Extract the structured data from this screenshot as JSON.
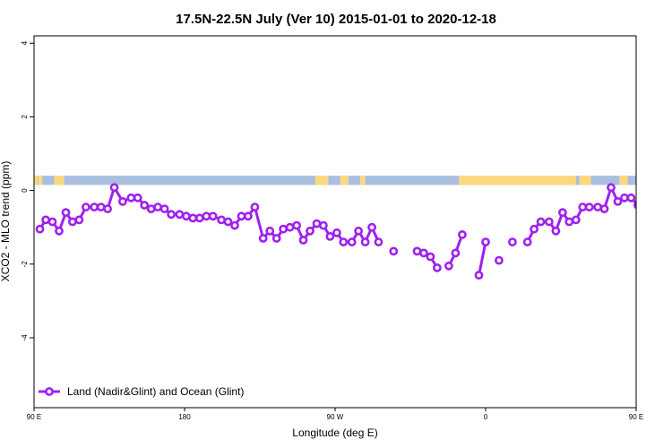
{
  "chart_data": {
    "type": "line",
    "title": "17.5N-22.5N July (Ver 10)   2015-01-01 to 2020-12-18",
    "xlabel": "Longitude (deg E)",
    "ylabel": "XCO2 - MLO trend (ppm)",
    "xlim": [
      90,
      450
    ],
    "ylim": [
      -5.9,
      4.2
    ],
    "x_ticks": [
      {
        "value": 90,
        "label": "90 E"
      },
      {
        "value": 180,
        "label": "180"
      },
      {
        "value": 270,
        "label": "90 W"
      },
      {
        "value": 360,
        "label": "0"
      },
      {
        "value": 450,
        "label": "90 E"
      },
      {
        "value": 540,
        "label": "180"
      }
    ],
    "y_ticks": [
      {
        "value": 4,
        "label": "4"
      },
      {
        "value": 2,
        "label": "2"
      },
      {
        "value": 0,
        "label": "0"
      },
      {
        "value": -2,
        "label": "-2"
      },
      {
        "value": -4,
        "label": "-4"
      }
    ],
    "land_mask_band": {
      "y_range": [
        0.15,
        0.4
      ],
      "ocean_color": "#a9bfdf",
      "land_color": "#fcd97e",
      "land_x_ranges": [
        [
          90,
          92
        ],
        [
          92.5,
          95
        ],
        [
          102,
          108
        ],
        [
          258,
          266
        ],
        [
          273,
          278
        ],
        [
          285,
          288
        ],
        [
          344,
          414
        ],
        [
          416,
          423
        ],
        [
          440,
          445
        ],
        [
          450,
          452
        ],
        [
          454,
          458
        ],
        [
          496,
          500
        ]
      ]
    },
    "series": [
      {
        "name": "Land (Nadir&Glint) and Ocean (Glint)",
        "color": "#a020f0",
        "segments": [
          [
            [
              93.5,
              -1.05
            ],
            [
              97,
              -0.8
            ],
            [
              101,
              -0.85
            ],
            [
              105,
              -1.1
            ],
            [
              109,
              -0.6
            ],
            [
              113,
              -0.85
            ],
            [
              117,
              -0.8
            ],
            [
              121,
              -0.45
            ],
            [
              126,
              -0.45
            ],
            [
              130,
              -0.45
            ],
            [
              134,
              -0.5
            ],
            [
              138,
              0.08
            ],
            [
              143,
              -0.3
            ],
            [
              148,
              -0.2
            ],
            [
              152,
              -0.2
            ],
            [
              156,
              -0.4
            ],
            [
              160,
              -0.5
            ],
            [
              164,
              -0.45
            ],
            [
              168,
              -0.5
            ],
            [
              172,
              -0.65
            ],
            [
              177,
              -0.65
            ],
            [
              181,
              -0.7
            ],
            [
              185,
              -0.75
            ],
            [
              189,
              -0.75
            ],
            [
              193,
              -0.7
            ],
            [
              197,
              -0.7
            ],
            [
              202,
              -0.8
            ],
            [
              206,
              -0.85
            ],
            [
              210,
              -0.95
            ],
            [
              214,
              -0.7
            ],
            [
              218,
              -0.7
            ],
            [
              222,
              -0.45
            ],
            [
              227,
              -1.3
            ],
            [
              231,
              -1.1
            ],
            [
              235,
              -1.3
            ],
            [
              239,
              -1.05
            ],
            [
              243,
              -1.0
            ],
            [
              247,
              -0.95
            ],
            [
              251,
              -1.35
            ],
            [
              255,
              -1.1
            ],
            [
              259,
              -0.9
            ],
            [
              263,
              -0.95
            ],
            [
              267,
              -1.25
            ],
            [
              271,
              -1.15
            ],
            [
              275,
              -1.4
            ],
            [
              280,
              -1.4
            ],
            [
              284,
              -1.1
            ],
            [
              288,
              -1.4
            ],
            [
              292,
              -1.0
            ],
            [
              296,
              -1.4
            ]
          ],
          [
            [
              305,
              -1.65
            ]
          ],
          [
            [
              319,
              -1.65
            ],
            [
              323,
              -1.7
            ],
            [
              327,
              -1.8
            ],
            [
              331,
              -2.1
            ]
          ],
          [
            [
              338,
              -2.05
            ],
            [
              342,
              -1.7
            ],
            [
              346,
              -1.2
            ]
          ],
          [
            [
              356,
              -2.3
            ],
            [
              360,
              -1.4
            ]
          ],
          [
            [
              368,
              -1.9
            ]
          ],
          [
            [
              376,
              -1.4
            ]
          ],
          [
            [
              385,
              -1.4
            ],
            [
              389,
              -1.05
            ],
            [
              393,
              -0.85
            ],
            [
              398,
              -0.85
            ],
            [
              402,
              -1.1
            ],
            [
              406,
              -0.6
            ],
            [
              410,
              -0.85
            ],
            [
              414,
              -0.8
            ],
            [
              418,
              -0.45
            ],
            [
              422,
              -0.45
            ],
            [
              427,
              -0.45
            ],
            [
              431,
              -0.5
            ],
            [
              435,
              0.08
            ],
            [
              439,
              -0.3
            ],
            [
              443,
              -0.2
            ],
            [
              447,
              -0.2
            ],
            [
              451,
              -0.4
            ],
            [
              455,
              -0.5
            ],
            [
              459,
              -0.5
            ]
          ]
        ]
      }
    ],
    "legend": {
      "placement": "bottom-left",
      "entries": [
        "Land (Nadir&Glint) and Ocean (Glint)"
      ]
    },
    "grid": false
  }
}
